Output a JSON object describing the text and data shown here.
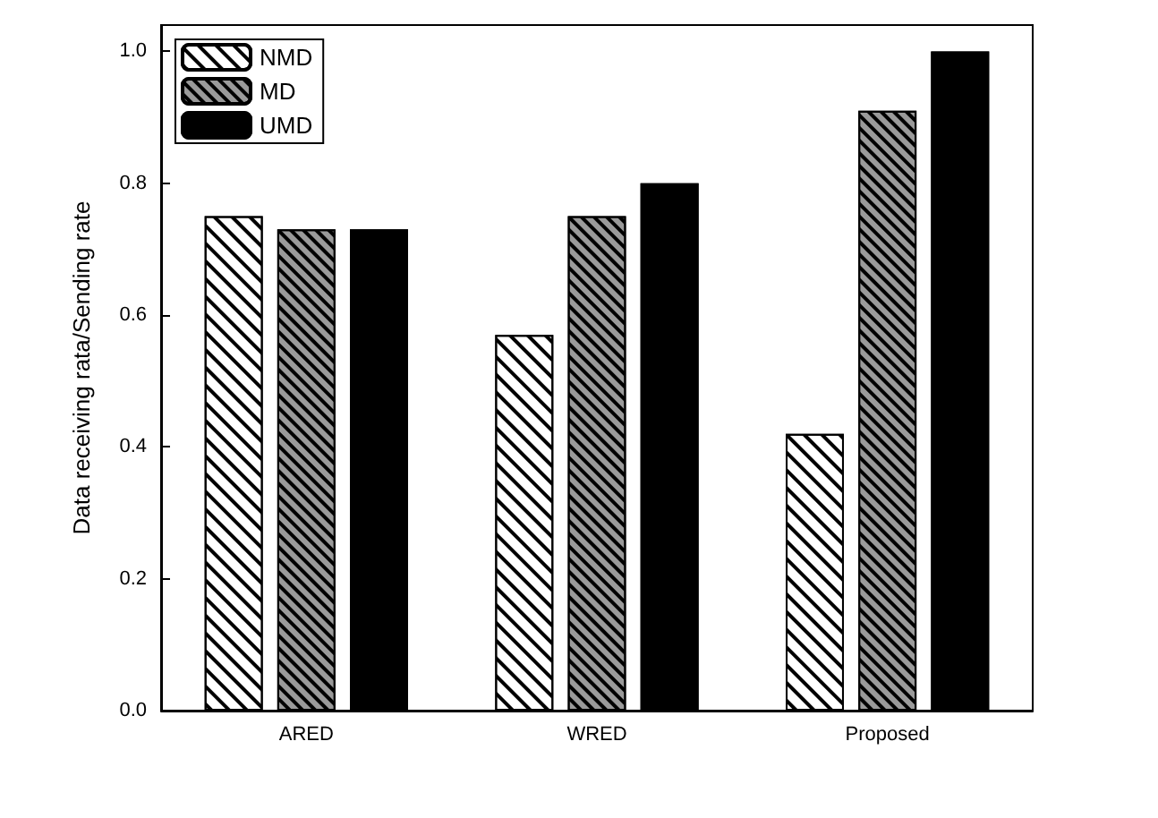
{
  "chart_data": {
    "type": "bar",
    "ylabel": "Data receiving rata/Sending rate",
    "categories": [
      "ARED",
      "WRED",
      "Proposed"
    ],
    "series": [
      {
        "name": "NMD",
        "color": "#ffffff",
        "values": [
          0.75,
          0.57,
          0.42
        ]
      },
      {
        "name": "MD",
        "color": "#9a9a9a",
        "values": [
          0.73,
          0.75,
          0.91
        ]
      },
      {
        "name": "UMD",
        "color": "#000000",
        "values": [
          0.73,
          0.8,
          1.0
        ]
      }
    ],
    "ylim": [
      0,
      1.04
    ],
    "yticks": [
      {
        "value": 0,
        "label": "0.0"
      },
      {
        "value": 0.2,
        "label": "0.2"
      },
      {
        "value": 0.4,
        "label": "0.4"
      },
      {
        "value": 0.6,
        "label": "0.6"
      },
      {
        "value": 0.8,
        "label": "0.8"
      },
      {
        "value": 1,
        "label": "1.0"
      }
    ],
    "grid": false,
    "legend": "top left"
  }
}
